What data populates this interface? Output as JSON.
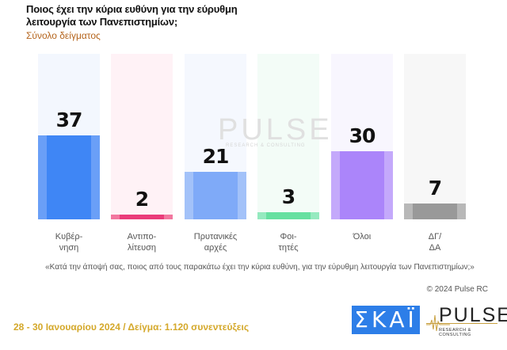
{
  "header": {
    "title": "Ποιος έχει την κύρια ευθύνη για την εύρυθμη λειτουργία των Πανεπιστημίων;",
    "subtitle": "Σύνολο δείγματος"
  },
  "chart_data": {
    "type": "bar",
    "title": "Ποιος έχει την κύρια ευθύνη για την εύρυθμη λειτουργία των Πανεπιστημίων;",
    "subtitle": "Σύνολο δείγματος",
    "categories": [
      "Κυβέρ-νηση",
      "Αντιπο-λίτευση",
      "Πρυτανικές αρχές",
      "Φοι-τητές",
      "Όλοι",
      "ΔΓ/ΔΑ"
    ],
    "values": [
      37,
      2,
      21,
      3,
      30,
      7
    ],
    "colors": [
      "#3f86f5",
      "#ef4f84",
      "#82b0f8",
      "#6ee3a5",
      "#ad87fa",
      "#9a9a9a"
    ],
    "xlabel": "",
    "ylabel": "",
    "ylim": [
      0,
      72
    ],
    "grid": false,
    "legend": "none",
    "data_labels": true
  },
  "bars": [
    {
      "value": "37",
      "label1": "Κυβέρ-",
      "label2": "νηση",
      "color": "#3f86f5",
      "edge": "#6a9ff7",
      "bg": "#f3f7fe"
    },
    {
      "value": "2",
      "label1": "Αντιπο-",
      "label2": "λίτευση",
      "color": "#ea3c7a",
      "edge": "#f2779f",
      "bg": "#fff2f6"
    },
    {
      "value": "21",
      "label1": "Πρυτανικές",
      "label2": "αρχές",
      "color": "#7faaf8",
      "edge": "#a3c2f9",
      "bg": "#f5f8fe"
    },
    {
      "value": "3",
      "label1": "Φοι-",
      "label2": "τητές",
      "color": "#66e0a0",
      "edge": "#95eabf",
      "bg": "#f3fcf7"
    },
    {
      "value": "30",
      "label1": "Όλοι",
      "label2": "",
      "color": "#ab85fa",
      "edge": "#c4a9fb",
      "bg": "#f8f6fe"
    },
    {
      "value": "7",
      "label1": "ΔΓ/",
      "label2": "ΔΑ",
      "color": "#999999",
      "edge": "#b8b8b8",
      "bg": "#f7f7f7"
    }
  ],
  "watermark": {
    "text": "PULSE",
    "sub": "RESEARCH & CONSULTING"
  },
  "question": "«Κατά την άποψή σας, ποιος από τους παρακάτω έχει την κύρια ευθύνη, για την εύρυθμη λειτουργία των Πανεπιστημίων;»",
  "copyright": "© 2024 Pulse RC",
  "footer": "28 - 30  Ιανουαρίου  2024  /  Δείγμα:  1.120 συνεντεύξεις",
  "logos": {
    "skai": "ΣΚΑΪ",
    "pulse": "PULSE",
    "pulse_sub": "RESEARCH & CONSULTING"
  }
}
